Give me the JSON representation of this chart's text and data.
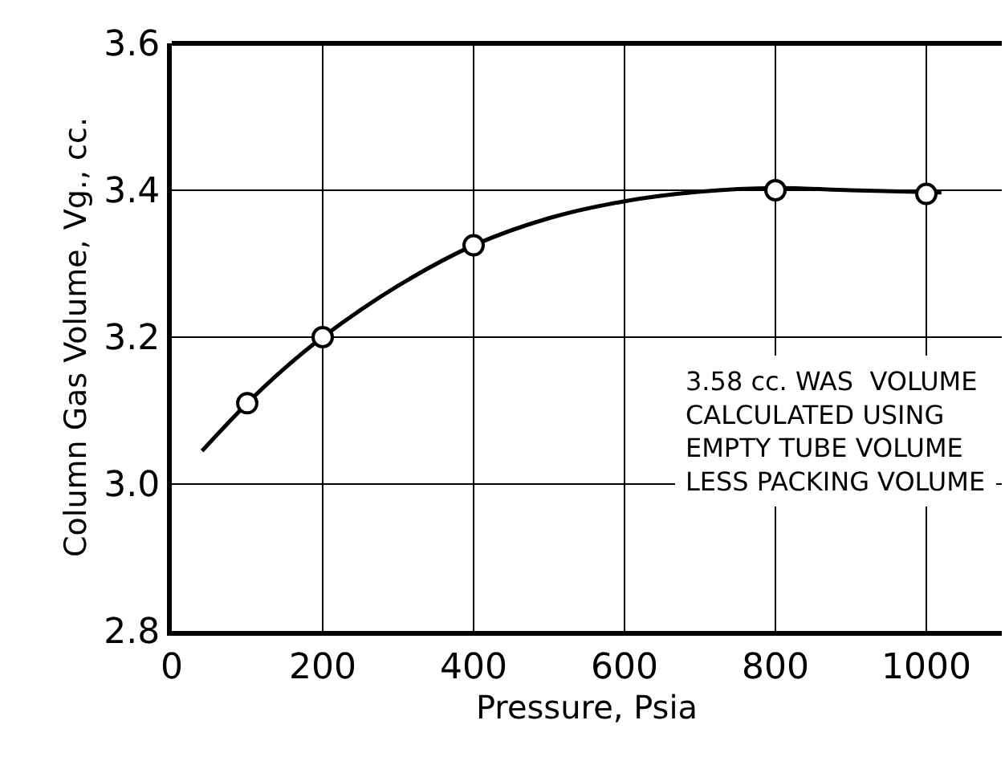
{
  "chart_data": {
    "type": "scatter",
    "xlabel": "Pressure, Psia",
    "ylabel": "Column Gas Volume, Vg., cc.",
    "series": [
      {
        "color": "#000000",
        "marker": "circle",
        "x": [
          100,
          200,
          400,
          800,
          1000
        ],
        "values": [
          3.11,
          3.2,
          3.325,
          3.4,
          3.395
        ]
      },
      {
        "type": "line",
        "color": "#000000",
        "line_style": "solid",
        "x": [
          40,
          100,
          150,
          200,
          300,
          400,
          500,
          600,
          700,
          800,
          900,
          1020
        ],
        "values": [
          3.045,
          3.11,
          3.158,
          3.2,
          3.27,
          3.325,
          3.362,
          3.385,
          3.398,
          3.403,
          3.4,
          3.397
        ]
      }
    ],
    "xlim": [
      0,
      1100
    ],
    "xticks": [
      0,
      200,
      400,
      600,
      800,
      1000
    ],
    "ylim": [
      2.8,
      3.6
    ],
    "yticks": [
      2.8,
      {
        "value": 3.0,
        "label": "3.0"
      },
      3.2,
      3.4,
      3.6
    ],
    "grid": true,
    "annotations": [
      "3.58 cc. WAS  VOLUME\nCALCULATED USING\nEMPTY TUBE VOLUME\nLESS PACKING VOLUME"
    ]
  }
}
